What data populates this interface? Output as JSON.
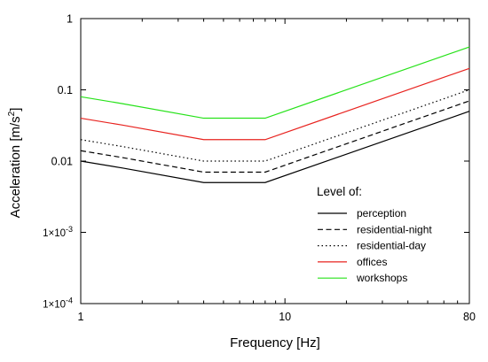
{
  "chart_data": {
    "type": "line",
    "xlabel": "Frequency [Hz]",
    "ylabel_main": "Acceleration [m/s",
    "ylabel_sup": "2",
    "ylabel_end": "]",
    "xscale": "log",
    "yscale": "log",
    "xlim": [
      1,
      80
    ],
    "ylim": [
      0.0001,
      1
    ],
    "grid": false,
    "legend_position": "lower-right",
    "legend_title": "Level of:",
    "x_ticks": [
      {
        "value": 1,
        "label": "1"
      },
      {
        "value": 10,
        "label": "10"
      },
      {
        "value": 80,
        "label": "80"
      }
    ],
    "y_ticks": [
      {
        "value": 1,
        "label": "1",
        "mant": "",
        "exp": ""
      },
      {
        "value": 0.1,
        "label": "0.1",
        "mant": "",
        "exp": ""
      },
      {
        "value": 0.01,
        "label": "0.01",
        "mant": "",
        "exp": ""
      },
      {
        "value": 0.001,
        "label": "",
        "mant": "1×10",
        "exp": "-3"
      },
      {
        "value": 0.0001,
        "label": "",
        "mant": "1×10",
        "exp": "-4"
      }
    ],
    "series": [
      {
        "name": "perception",
        "color": "#000000",
        "dash": "solid",
        "x": [
          1,
          1.6,
          4,
          8,
          80
        ],
        "y": [
          0.01,
          0.008,
          0.005,
          0.005,
          0.05
        ]
      },
      {
        "name": "residential-night",
        "color": "#000000",
        "dash": "dashed",
        "x": [
          1,
          1.6,
          4,
          8,
          80
        ],
        "y": [
          0.014,
          0.0112,
          0.007,
          0.007,
          0.07
        ]
      },
      {
        "name": "residential-day",
        "color": "#000000",
        "dash": "dotted",
        "x": [
          1,
          1.6,
          4,
          8,
          80
        ],
        "y": [
          0.02,
          0.016,
          0.01,
          0.01,
          0.1
        ]
      },
      {
        "name": "offices",
        "color": "#e8231f",
        "dash": "solid",
        "x": [
          1,
          1.6,
          4,
          8,
          80
        ],
        "y": [
          0.04,
          0.032,
          0.02,
          0.02,
          0.2
        ]
      },
      {
        "name": "workshops",
        "color": "#27e21a",
        "dash": "solid",
        "x": [
          1,
          1.6,
          4,
          8,
          80
        ],
        "y": [
          0.08,
          0.064,
          0.04,
          0.04,
          0.4
        ]
      }
    ]
  }
}
